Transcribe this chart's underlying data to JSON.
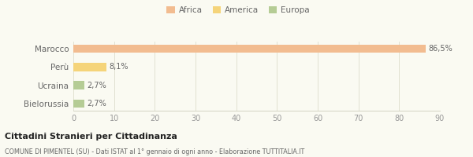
{
  "categories": [
    "Marocco",
    "Perù",
    "Ucraina",
    "Bielorussia"
  ],
  "values": [
    86.5,
    8.1,
    2.7,
    2.7
  ],
  "colors": [
    "#f2bc90",
    "#f5d47a",
    "#b5cc95",
    "#b5cc95"
  ],
  "labels": [
    "86,5%",
    "8,1%",
    "2,7%",
    "2,7%"
  ],
  "legend_labels": [
    "Africa",
    "America",
    "Europa"
  ],
  "legend_colors": [
    "#f2bc90",
    "#f5d47a",
    "#b5cc95"
  ],
  "xlim": [
    0,
    90
  ],
  "xticks": [
    0,
    10,
    20,
    30,
    40,
    50,
    60,
    70,
    80,
    90
  ],
  "title": "Cittadini Stranieri per Cittadinanza",
  "subtitle": "COMUNE DI PIMENTEL (SU) - Dati ISTAT al 1° gennaio di ogni anno - Elaborazione TUTTITALIA.IT",
  "bg_color": "#fafaf2"
}
